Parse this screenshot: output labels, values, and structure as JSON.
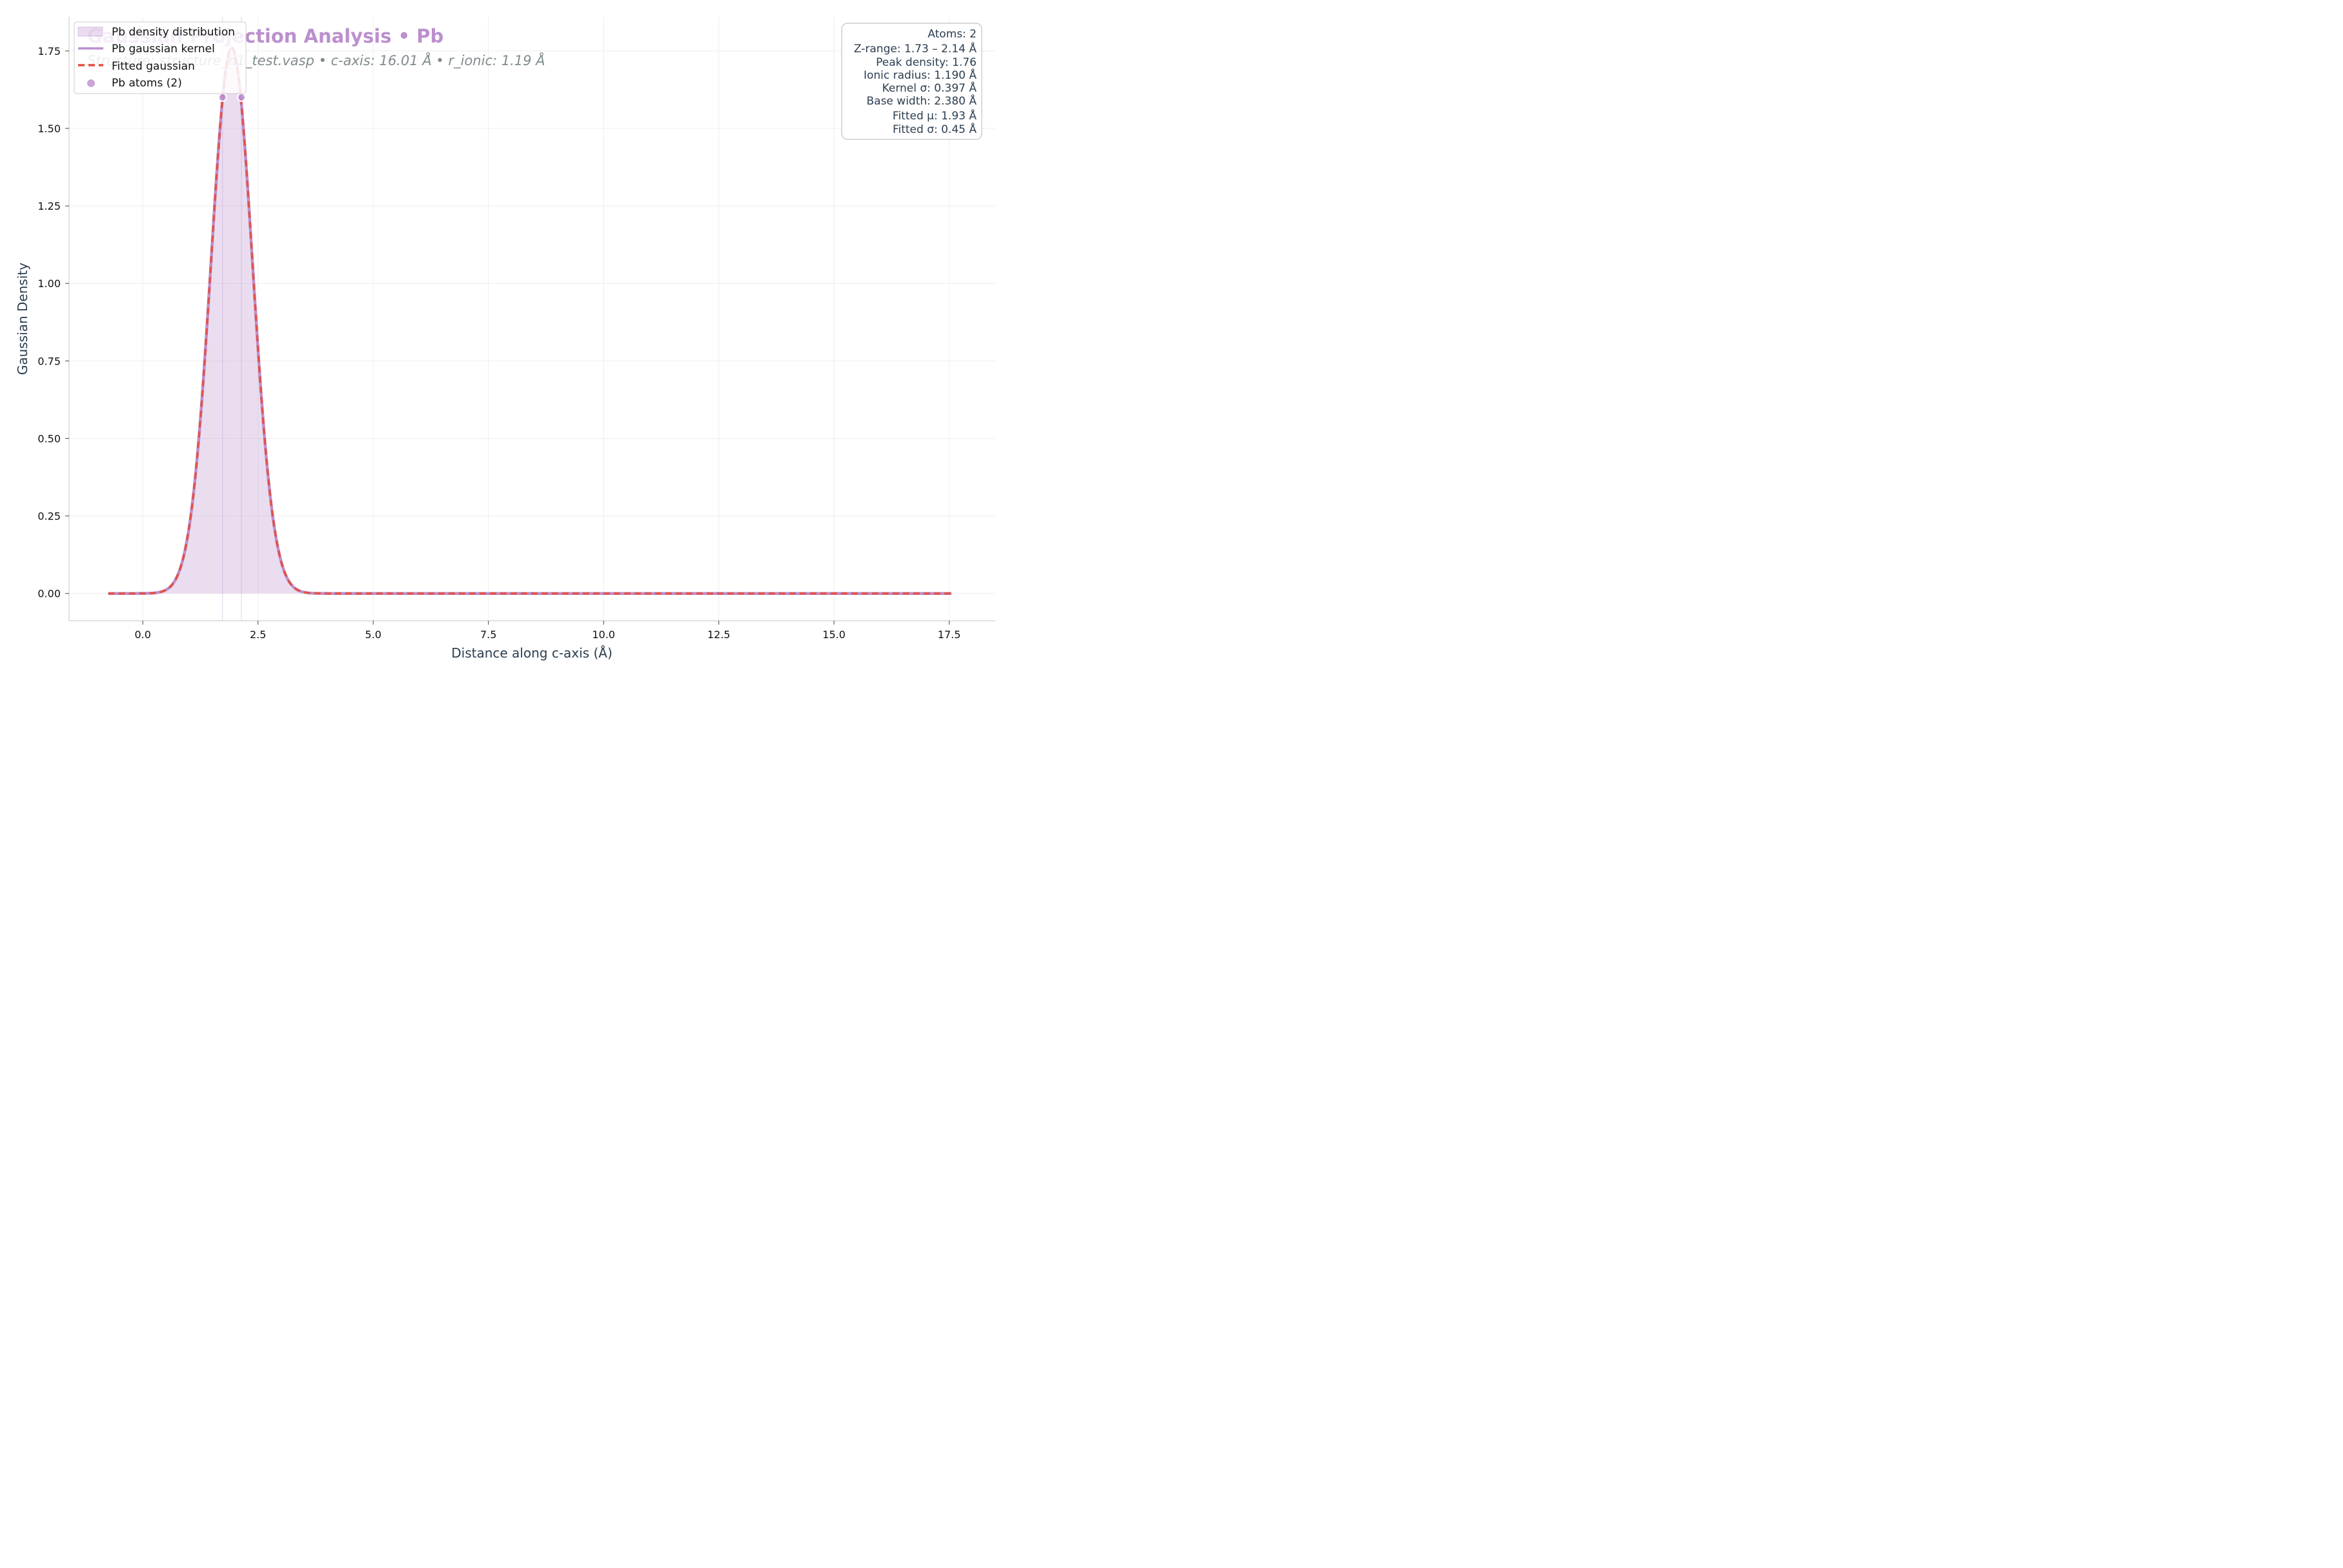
{
  "chart_data": {
    "type": "area",
    "title": "Gaussian Projection Analysis • Pb",
    "subtitle": "Structure: structure_n1_test.vasp • c-axis: 16.01 Å • r_ionic: 1.19 Å",
    "xlabel": "Distance along c-axis (Å)",
    "ylabel": "Gaussian Density",
    "xlim": [
      -1.6,
      18.5
    ],
    "ylim": [
      -0.088,
      1.86
    ],
    "x_ticks": [
      0.0,
      2.5,
      5.0,
      7.5,
      10.0,
      12.5,
      15.0,
      17.5
    ],
    "x_tick_labels": [
      "0.0",
      "2.5",
      "5.0",
      "7.5",
      "10.0",
      "12.5",
      "15.0",
      "17.5"
    ],
    "y_ticks": [
      0.0,
      0.25,
      0.5,
      0.75,
      1.0,
      1.25,
      1.5,
      1.75
    ],
    "y_tick_labels": [
      "0.00",
      "0.25",
      "0.50",
      "0.75",
      "1.00",
      "1.25",
      "1.50",
      "1.75"
    ],
    "grid": true,
    "x_range": [
      -0.75,
      17.55
    ],
    "series": [
      {
        "name": "Pb density distribution",
        "kind": "fill",
        "color": "#bb8fce",
        "mu": 1.93,
        "sigma": 0.45,
        "peak": 1.76
      },
      {
        "name": "Pb gaussian kernel",
        "kind": "line",
        "color": "#bb8fce",
        "mu": 1.93,
        "sigma": 0.45,
        "peak": 1.76
      },
      {
        "name": "Fitted gaussian",
        "kind": "dashed-line",
        "color": "#e74c3c",
        "mu": 1.93,
        "sigma": 0.45,
        "peak": 1.76
      },
      {
        "name": "Pb atoms (2)",
        "kind": "scatter",
        "color": "#bb8fce",
        "points": [
          {
            "x": 1.73,
            "y": 1.6
          },
          {
            "x": 2.14,
            "y": 1.6
          }
        ]
      }
    ],
    "atom_lines": [
      1.73,
      2.14
    ],
    "legend_position": "top-left",
    "stats_box": {
      "position": "top-right",
      "lines": [
        "Atoms: 2",
        "Z-range: 1.73 – 2.14 Å",
        "Peak density: 1.76",
        "Ionic radius: 1.190 Å",
        "Kernel σ: 0.397 Å",
        "Base width: 2.380 Å",
        "Fitted μ: 1.93 Å",
        "Fitted σ: 0.45 Å"
      ]
    }
  }
}
